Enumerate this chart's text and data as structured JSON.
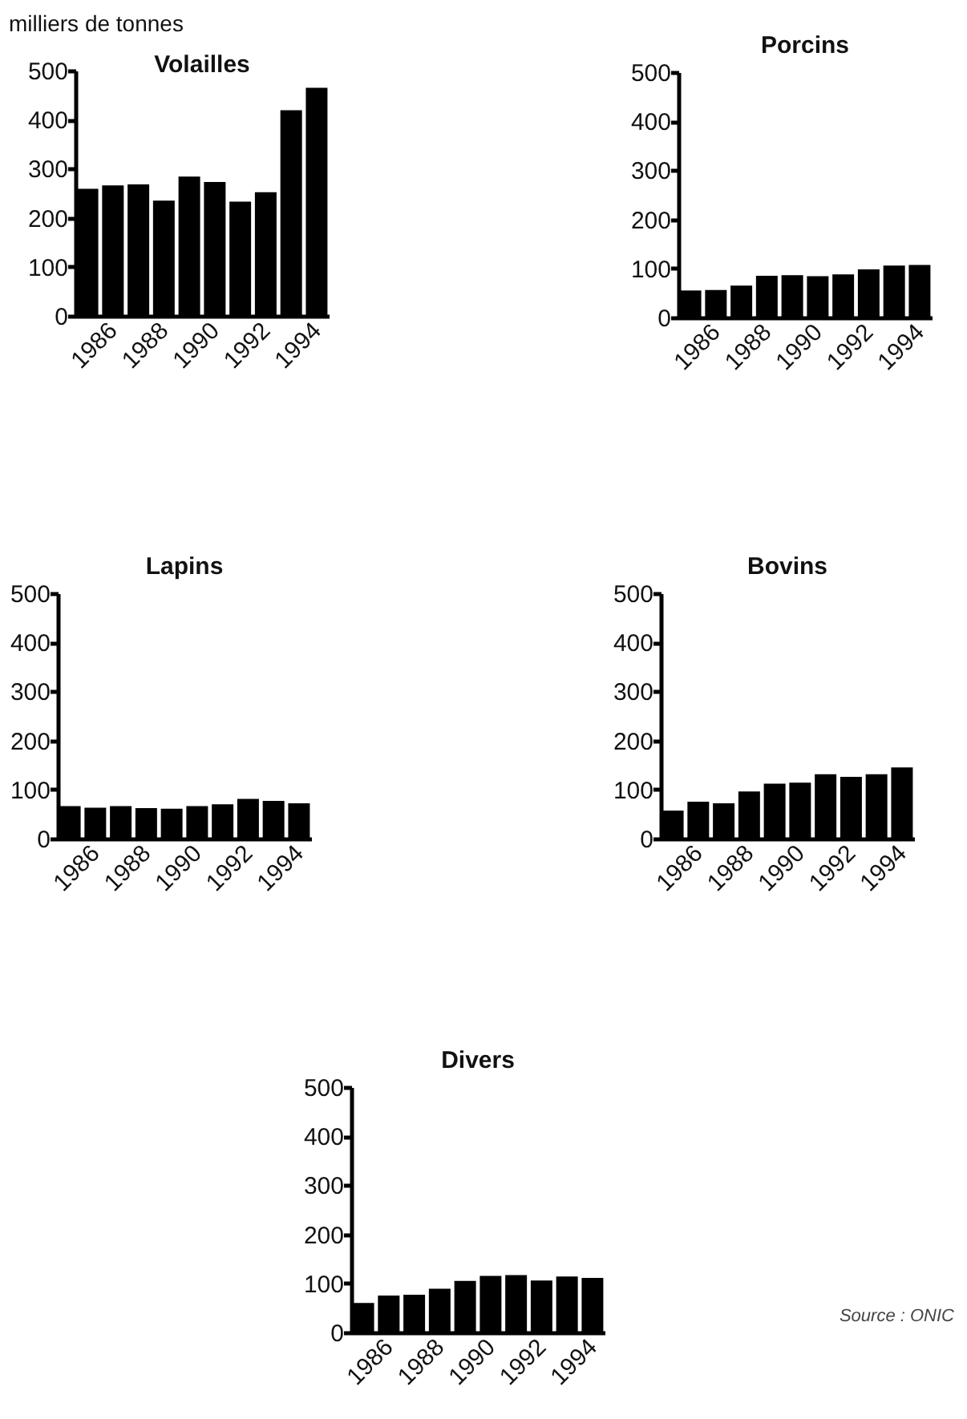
{
  "chart_data": [
    {
      "type": "bar",
      "title": "Volailles",
      "ylabel": "milliers de tonnes",
      "categories": [
        null,
        "1986",
        null,
        "1988",
        null,
        "1990",
        null,
        "1992",
        null,
        "1994"
      ],
      "values": [
        259,
        266,
        268,
        235,
        284,
        273,
        233,
        252,
        419,
        465
      ],
      "color": "#000000",
      "ylim": [
        0,
        500
      ],
      "yticks": [
        0,
        100,
        200,
        300,
        400,
        500
      ]
    },
    {
      "type": "bar",
      "title": "Porcins",
      "categories": [
        null,
        "1986",
        null,
        "1988",
        null,
        "1990",
        null,
        "1992",
        null,
        "1994"
      ],
      "values": [
        55,
        56,
        65,
        85,
        86,
        84,
        88,
        98,
        106,
        107
      ],
      "color": "#000000",
      "ylim": [
        0,
        500
      ],
      "yticks": [
        0,
        100,
        200,
        300,
        400,
        500
      ]
    },
    {
      "type": "bar",
      "title": "Lapins",
      "categories": [
        null,
        "1986",
        null,
        "1988",
        null,
        "1990",
        null,
        "1992",
        null,
        "1994"
      ],
      "values": [
        66,
        63,
        66,
        62,
        61,
        66,
        70,
        81,
        77,
        72
      ],
      "color": "#000000",
      "ylim": [
        0,
        500
      ],
      "yticks": [
        0,
        100,
        200,
        300,
        400,
        500
      ]
    },
    {
      "type": "bar",
      "title": "Bovins",
      "categories": [
        null,
        "1986",
        null,
        "1988",
        null,
        "1990",
        null,
        "1992",
        null,
        "1994"
      ],
      "values": [
        57,
        75,
        72,
        96,
        112,
        114,
        131,
        126,
        131,
        145
      ],
      "color": "#000000",
      "ylim": [
        0,
        500
      ],
      "yticks": [
        0,
        100,
        200,
        300,
        400,
        500
      ]
    },
    {
      "type": "bar",
      "title": "Divers",
      "categories": [
        null,
        "1986",
        null,
        "1988",
        null,
        "1990",
        null,
        "1992",
        null,
        "1994"
      ],
      "values": [
        60,
        75,
        77,
        89,
        105,
        115,
        117,
        106,
        114,
        111
      ],
      "color": "#000000",
      "ylim": [
        0,
        500
      ],
      "yticks": [
        0,
        100,
        200,
        300,
        400,
        500
      ],
      "annotations": [
        "Source : ONIC"
      ]
    }
  ]
}
